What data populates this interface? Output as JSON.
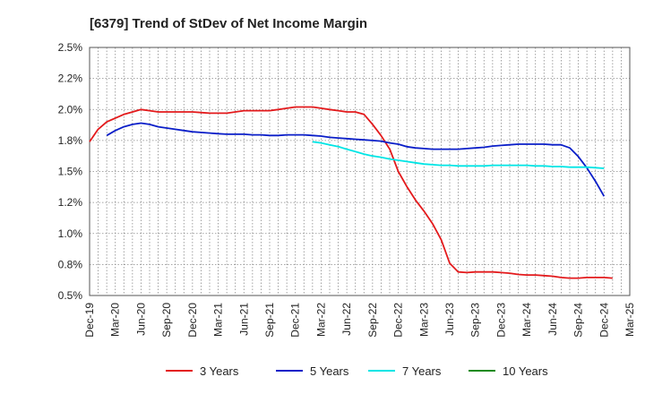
{
  "chart_data": {
    "type": "line",
    "title": "[6379]  Trend of StDev of Net Income Margin",
    "xlabel": "",
    "ylabel": "",
    "y_ticks": [
      "0.5%",
      "0.8%",
      "1.0%",
      "1.2%",
      "1.5%",
      "1.8%",
      "2.0%",
      "2.2%",
      "2.5%"
    ],
    "ylim": [
      0.5,
      2.5
    ],
    "x_ticks": [
      "Dec-19",
      "Mar-20",
      "Jun-20",
      "Sep-20",
      "Dec-20",
      "Mar-21",
      "Jun-21",
      "Sep-21",
      "Dec-21",
      "Mar-22",
      "Jun-22",
      "Sep-22",
      "Dec-22",
      "Mar-23",
      "Jun-23",
      "Sep-23",
      "Dec-23",
      "Mar-24",
      "Jun-24",
      "Sep-24",
      "Dec-24",
      "Mar-25"
    ],
    "grid": true,
    "legend_position": "bottom",
    "series": [
      {
        "name": "3 Years",
        "color": "#e31a1c",
        "points": [
          [
            0,
            1.74
          ],
          [
            0.33,
            1.84
          ],
          [
            0.67,
            1.9
          ],
          [
            1,
            1.93
          ],
          [
            1.33,
            1.96
          ],
          [
            1.67,
            1.98
          ],
          [
            2,
            2.0
          ],
          [
            2.33,
            1.99
          ],
          [
            2.67,
            1.98
          ],
          [
            3,
            1.98
          ],
          [
            3.33,
            1.98
          ],
          [
            3.67,
            1.98
          ],
          [
            4,
            1.98
          ],
          [
            4.33,
            1.975
          ],
          [
            4.67,
            1.97
          ],
          [
            5,
            1.97
          ],
          [
            5.33,
            1.97
          ],
          [
            5.67,
            1.98
          ],
          [
            6,
            1.99
          ],
          [
            6.33,
            1.99
          ],
          [
            6.67,
            1.99
          ],
          [
            7,
            1.99
          ],
          [
            7.33,
            2.0
          ],
          [
            7.67,
            2.01
          ],
          [
            8,
            2.02
          ],
          [
            8.33,
            2.02
          ],
          [
            8.67,
            2.02
          ],
          [
            9,
            2.01
          ],
          [
            9.33,
            2.0
          ],
          [
            9.67,
            1.99
          ],
          [
            10,
            1.98
          ],
          [
            10.33,
            1.98
          ],
          [
            10.67,
            1.96
          ],
          [
            11,
            1.88
          ],
          [
            11.33,
            1.79
          ],
          [
            11.67,
            1.68
          ],
          [
            12,
            1.5
          ],
          [
            12.33,
            1.38
          ],
          [
            12.67,
            1.27
          ],
          [
            13,
            1.18
          ],
          [
            13.33,
            1.08
          ],
          [
            13.67,
            0.95
          ],
          [
            14,
            0.76
          ],
          [
            14.33,
            0.69
          ],
          [
            14.67,
            0.685
          ],
          [
            15,
            0.69
          ],
          [
            15.33,
            0.69
          ],
          [
            15.67,
            0.69
          ],
          [
            16,
            0.685
          ],
          [
            16.33,
            0.68
          ],
          [
            16.67,
            0.67
          ],
          [
            17,
            0.665
          ],
          [
            17.33,
            0.665
          ],
          [
            17.67,
            0.66
          ],
          [
            18,
            0.655
          ],
          [
            18.33,
            0.645
          ],
          [
            18.67,
            0.64
          ],
          [
            19,
            0.64
          ],
          [
            19.33,
            0.645
          ],
          [
            19.67,
            0.645
          ],
          [
            20,
            0.645
          ],
          [
            20.33,
            0.64
          ]
        ]
      },
      {
        "name": "5 Years",
        "color": "#0a1ec8",
        "points": [
          [
            0.67,
            1.79
          ],
          [
            1,
            1.83
          ],
          [
            1.33,
            1.86
          ],
          [
            1.67,
            1.88
          ],
          [
            2,
            1.89
          ],
          [
            2.33,
            1.88
          ],
          [
            2.67,
            1.86
          ],
          [
            3,
            1.85
          ],
          [
            3.33,
            1.84
          ],
          [
            3.67,
            1.83
          ],
          [
            4,
            1.82
          ],
          [
            4.33,
            1.815
          ],
          [
            4.67,
            1.81
          ],
          [
            5,
            1.805
          ],
          [
            5.33,
            1.8
          ],
          [
            5.67,
            1.8
          ],
          [
            6,
            1.8
          ],
          [
            6.33,
            1.795
          ],
          [
            6.67,
            1.795
          ],
          [
            7,
            1.79
          ],
          [
            7.33,
            1.79
          ],
          [
            7.67,
            1.795
          ],
          [
            8,
            1.795
          ],
          [
            8.33,
            1.795
          ],
          [
            8.67,
            1.79
          ],
          [
            9,
            1.785
          ],
          [
            9.33,
            1.775
          ],
          [
            9.67,
            1.77
          ],
          [
            10,
            1.765
          ],
          [
            10.33,
            1.76
          ],
          [
            10.67,
            1.755
          ],
          [
            11,
            1.75
          ],
          [
            11.33,
            1.745
          ],
          [
            11.67,
            1.73
          ],
          [
            12,
            1.72
          ],
          [
            12.33,
            1.7
          ],
          [
            12.67,
            1.69
          ],
          [
            13,
            1.685
          ],
          [
            13.33,
            1.68
          ],
          [
            13.67,
            1.68
          ],
          [
            14,
            1.68
          ],
          [
            14.33,
            1.68
          ],
          [
            14.67,
            1.685
          ],
          [
            15,
            1.69
          ],
          [
            15.33,
            1.695
          ],
          [
            15.67,
            1.705
          ],
          [
            16,
            1.71
          ],
          [
            16.33,
            1.715
          ],
          [
            16.67,
            1.72
          ],
          [
            17,
            1.72
          ],
          [
            17.33,
            1.72
          ],
          [
            17.67,
            1.72
          ],
          [
            18,
            1.715
          ],
          [
            18.33,
            1.715
          ],
          [
            18.67,
            1.69
          ],
          [
            19,
            1.62
          ],
          [
            19.33,
            1.53
          ],
          [
            19.67,
            1.42
          ],
          [
            20,
            1.3
          ]
        ]
      },
      {
        "name": "7 Years",
        "color": "#00e5e5",
        "points": [
          [
            8.67,
            1.74
          ],
          [
            9,
            1.73
          ],
          [
            9.33,
            1.715
          ],
          [
            9.67,
            1.7
          ],
          [
            10,
            1.68
          ],
          [
            10.33,
            1.66
          ],
          [
            10.67,
            1.64
          ],
          [
            11,
            1.625
          ],
          [
            11.33,
            1.615
          ],
          [
            11.67,
            1.6
          ],
          [
            12,
            1.59
          ],
          [
            12.33,
            1.58
          ],
          [
            12.67,
            1.57
          ],
          [
            13,
            1.56
          ],
          [
            13.33,
            1.555
          ],
          [
            13.67,
            1.55
          ],
          [
            14,
            1.55
          ],
          [
            14.33,
            1.545
          ],
          [
            14.67,
            1.545
          ],
          [
            15,
            1.545
          ],
          [
            15.33,
            1.545
          ],
          [
            15.67,
            1.55
          ],
          [
            16,
            1.55
          ],
          [
            16.33,
            1.55
          ],
          [
            16.67,
            1.55
          ],
          [
            17,
            1.55
          ],
          [
            17.33,
            1.545
          ],
          [
            17.67,
            1.545
          ],
          [
            18,
            1.54
          ],
          [
            18.33,
            1.54
          ],
          [
            18.67,
            1.535
          ],
          [
            19,
            1.535
          ],
          [
            19.33,
            1.535
          ],
          [
            19.67,
            1.53
          ],
          [
            20,
            1.525
          ]
        ]
      },
      {
        "name": "10 Years",
        "color": "#1a8a1a",
        "points": []
      }
    ]
  }
}
